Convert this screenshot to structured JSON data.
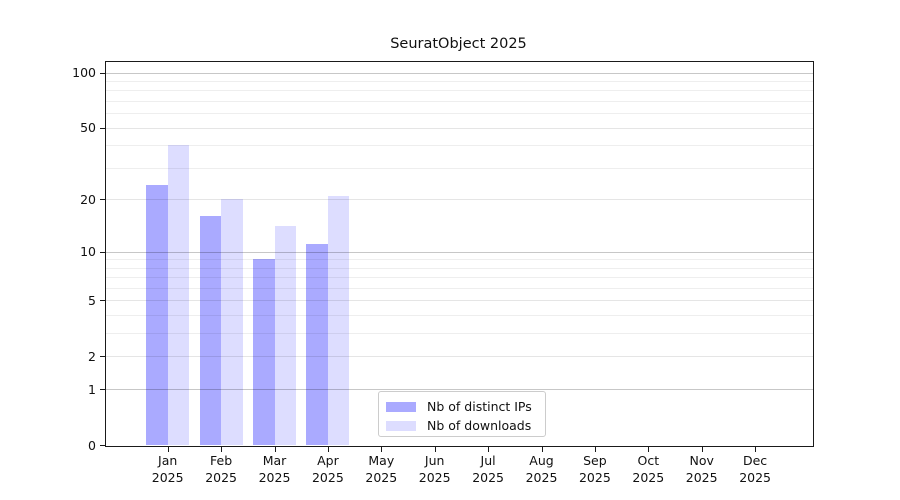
{
  "title": "SeuratObject 2025",
  "legend": {
    "items": [
      {
        "label": "Nb of distinct IPs",
        "color": "#aaaaff"
      },
      {
        "label": "Nb of downloads",
        "color": "#ddddff"
      }
    ],
    "position": "bottom-center"
  },
  "chart_data": {
    "type": "bar",
    "title": "SeuratObject 2025",
    "scale": "log1p",
    "categories": [
      "Jan 2025",
      "Feb 2025",
      "Mar 2025",
      "Apr 2025",
      "May 2025",
      "Jun 2025",
      "Jul 2025",
      "Aug 2025",
      "Sep 2025",
      "Oct 2025",
      "Nov 2025",
      "Dec 2025"
    ],
    "series": [
      {
        "name": "Nb of distinct IPs",
        "color": "#aaaaff",
        "values": [
          24,
          16,
          9,
          11,
          0,
          0,
          0,
          0,
          0,
          0,
          0,
          0
        ]
      },
      {
        "name": "Nb of downloads",
        "color": "#ddddff",
        "values": [
          40,
          20,
          14,
          21,
          0,
          0,
          0,
          0,
          0,
          0,
          0,
          0
        ]
      }
    ],
    "ytick_labels": [
      0,
      1,
      2,
      5,
      10,
      20,
      50,
      100
    ],
    "ylim": [
      0,
      114
    ],
    "xlabel": "",
    "ylabel": "",
    "grid": "horizontal",
    "legend_position": "bottom-center"
  }
}
